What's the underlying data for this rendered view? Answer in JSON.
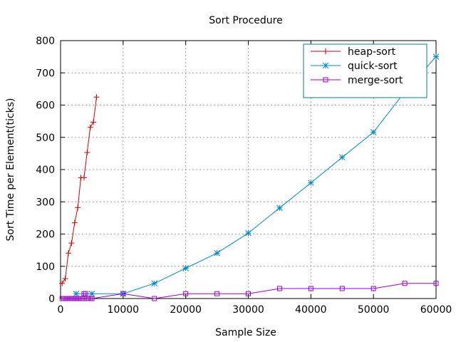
{
  "chart_data": {
    "type": "line",
    "title": "Sort Procedure",
    "xlabel": "Sample Size",
    "ylabel": "Sort Time per Element(ticks)",
    "xlim": [
      0,
      60000
    ],
    "ylim": [
      0,
      800
    ],
    "xticks": [
      0,
      10000,
      20000,
      30000,
      40000,
      50000,
      60000
    ],
    "yticks": [
      0,
      100,
      200,
      300,
      400,
      500,
      600,
      700,
      800
    ],
    "grid": true,
    "legend_position": "top-right",
    "series": [
      {
        "name": "heap-sort",
        "color": "#cc0000",
        "marker": "plus",
        "x": [
          250,
          750,
          1250,
          1750,
          2250,
          2750,
          3250,
          3750,
          4250,
          4750,
          5250,
          5750
        ],
        "y": [
          47,
          62,
          141,
          172,
          235,
          282,
          375,
          375,
          453,
          531,
          547,
          625
        ]
      },
      {
        "name": "quick-sort",
        "color": "#0088cc",
        "marker": "star",
        "x": [
          2500,
          5000,
          10000,
          15000,
          20000,
          25000,
          30000,
          35000,
          40000,
          45000,
          50000,
          55000,
          60000
        ],
        "y": [
          15,
          15,
          15,
          47,
          94,
          141,
          203,
          281,
          359,
          438,
          516,
          641,
          750
        ]
      },
      {
        "name": "merge-sort",
        "color": "#9900cc",
        "marker": "square",
        "x": [
          250,
          500,
          750,
          1000,
          1250,
          1500,
          1750,
          2000,
          2250,
          2500,
          2750,
          3000,
          3250,
          3500,
          3750,
          4000,
          4250,
          4500,
          4750,
          5000,
          10000,
          15000,
          20000,
          25000,
          30000,
          35000,
          40000,
          45000,
          50000,
          55000,
          60000
        ],
        "y": [
          0,
          0,
          0,
          0,
          0,
          0,
          0,
          0,
          0,
          0,
          0,
          0,
          0,
          0,
          15,
          15,
          0,
          0,
          0,
          0,
          15,
          0,
          15,
          15,
          15,
          31,
          31,
          31,
          31,
          47,
          47
        ]
      }
    ]
  }
}
